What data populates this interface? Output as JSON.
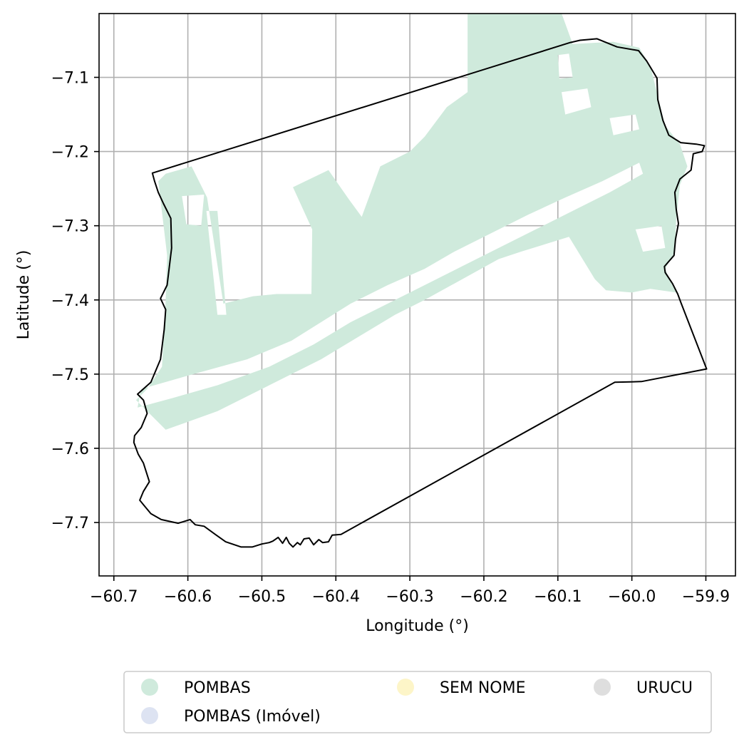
{
  "chart_data": {
    "type": "map",
    "xlabel": "Longitude (°)",
    "ylabel": "Latitude (°)",
    "xlim": [
      -60.72,
      -59.86
    ],
    "ylim": [
      -7.772,
      -7.014
    ],
    "x_ticks": [
      {
        "value": -60.7,
        "label": "−60.7"
      },
      {
        "value": -60.6,
        "label": "−60.6"
      },
      {
        "value": -60.5,
        "label": "−60.5"
      },
      {
        "value": -60.4,
        "label": "−60.4"
      },
      {
        "value": -60.3,
        "label": "−60.3"
      },
      {
        "value": -60.2,
        "label": "−60.2"
      },
      {
        "value": -60.1,
        "label": "−60.1"
      },
      {
        "value": -60.0,
        "label": "−60.0"
      },
      {
        "value": -59.9,
        "label": "−59.9"
      }
    ],
    "y_ticks": [
      {
        "value": -7.1,
        "label": "−7.1"
      },
      {
        "value": -7.2,
        "label": "−7.2"
      },
      {
        "value": -7.3,
        "label": "−7.3"
      },
      {
        "value": -7.4,
        "label": "−7.4"
      },
      {
        "value": -7.5,
        "label": "−7.5"
      },
      {
        "value": -7.6,
        "label": "−7.6"
      },
      {
        "value": -7.7,
        "label": "−7.7"
      }
    ],
    "grid": true,
    "legend_position": "bottom",
    "legend": [
      {
        "label": "POMBAS",
        "color": "#cfeadc"
      },
      {
        "label": "POMBAS (Imóvel)",
        "color": "#dde3f2"
      },
      {
        "label": "SEM NOME",
        "color": "#fdf5c8"
      },
      {
        "label": "URUCU",
        "color": "#dedede"
      }
    ],
    "boundary": [
      [
        -60.648,
        -7.229
      ],
      [
        -60.083,
        -7.053
      ],
      [
        -60.07,
        -7.05
      ],
      [
        -60.047,
        -7.048
      ],
      [
        -60.02,
        -7.059
      ],
      [
        -59.991,
        -7.064
      ],
      [
        -59.98,
        -7.078
      ],
      [
        -59.966,
        -7.101
      ],
      [
        -59.965,
        -7.13
      ],
      [
        -59.958,
        -7.158
      ],
      [
        -59.95,
        -7.178
      ],
      [
        -59.934,
        -7.188
      ],
      [
        -59.913,
        -7.19
      ],
      [
        -59.902,
        -7.192
      ],
      [
        -59.905,
        -7.2
      ],
      [
        -59.917,
        -7.203
      ],
      [
        -59.92,
        -7.225
      ],
      [
        -59.935,
        -7.237
      ],
      [
        -59.942,
        -7.255
      ],
      [
        -59.94,
        -7.278
      ],
      [
        -59.937,
        -7.297
      ],
      [
        -59.941,
        -7.318
      ],
      [
        -59.943,
        -7.34
      ],
      [
        -59.956,
        -7.355
      ],
      [
        -59.955,
        -7.363
      ],
      [
        -59.945,
        -7.378
      ],
      [
        -59.938,
        -7.392
      ],
      [
        -59.934,
        -7.403
      ],
      [
        -59.899,
        -7.493
      ],
      [
        -59.987,
        -7.51
      ],
      [
        -60.023,
        -7.511
      ],
      [
        -60.393,
        -7.716
      ],
      [
        -60.405,
        -7.717
      ],
      [
        -60.41,
        -7.726
      ],
      [
        -60.418,
        -7.727
      ],
      [
        -60.423,
        -7.723
      ],
      [
        -60.43,
        -7.73
      ],
      [
        -60.436,
        -7.721
      ],
      [
        -60.443,
        -7.722
      ],
      [
        -60.448,
        -7.73
      ],
      [
        -60.452,
        -7.727
      ],
      [
        -60.458,
        -7.733
      ],
      [
        -60.463,
        -7.728
      ],
      [
        -60.467,
        -7.72
      ],
      [
        -60.472,
        -7.728
      ],
      [
        -60.478,
        -7.72
      ],
      [
        -60.485,
        -7.725
      ],
      [
        -60.49,
        -7.727
      ],
      [
        -60.5,
        -7.729
      ],
      [
        -60.513,
        -7.733
      ],
      [
        -60.528,
        -7.733
      ],
      [
        -60.549,
        -7.726
      ],
      [
        -60.563,
        -7.716
      ],
      [
        -60.578,
        -7.705
      ],
      [
        -60.59,
        -7.703
      ],
      [
        -60.597,
        -7.696
      ],
      [
        -60.613,
        -7.701
      ],
      [
        -60.636,
        -7.696
      ],
      [
        -60.65,
        -7.688
      ],
      [
        -60.66,
        -7.676
      ],
      [
        -60.665,
        -7.67
      ],
      [
        -60.66,
        -7.658
      ],
      [
        -60.652,
        -7.645
      ],
      [
        -60.66,
        -7.62
      ],
      [
        -60.667,
        -7.608
      ],
      [
        -60.673,
        -7.592
      ],
      [
        -60.672,
        -7.583
      ],
      [
        -60.663,
        -7.572
      ],
      [
        -60.655,
        -7.553
      ],
      [
        -60.66,
        -7.535
      ],
      [
        -60.668,
        -7.527
      ],
      [
        -60.65,
        -7.511
      ],
      [
        -60.637,
        -7.48
      ],
      [
        -60.632,
        -7.44
      ],
      [
        -60.63,
        -7.413
      ],
      [
        -60.637,
        -7.398
      ],
      [
        -60.628,
        -7.38
      ],
      [
        -60.622,
        -7.33
      ],
      [
        -60.623,
        -7.29
      ],
      [
        -60.633,
        -7.27
      ],
      [
        -60.64,
        -7.255
      ],
      [
        -60.645,
        -7.24
      ],
      [
        -60.648,
        -7.229
      ]
    ],
    "regions": [
      {
        "name": "POMBAS",
        "color": "#cfeadc",
        "polygons": [
          [
            [
              -60.63,
              -7.575
            ],
            [
              -60.67,
              -7.535
            ],
            [
              -60.655,
              -7.52
            ],
            [
              -60.635,
              -7.49
            ],
            [
              -60.63,
              -7.4
            ],
            [
              -60.628,
              -7.34
            ],
            [
              -60.64,
              -7.24
            ],
            [
              -60.63,
              -7.23
            ],
            [
              -60.595,
              -7.22
            ],
            [
              -60.574,
              -7.262
            ],
            [
              -60.552,
              -7.405
            ],
            [
              -60.512,
              -7.395
            ],
            [
              -60.48,
              -7.392
            ],
            [
              -60.433,
              -7.392
            ],
            [
              -60.432,
              -7.305
            ],
            [
              -60.458,
              -7.248
            ],
            [
              -60.41,
              -7.225
            ],
            [
              -60.382,
              -7.265
            ],
            [
              -60.365,
              -7.288
            ],
            [
              -60.34,
              -7.22
            ],
            [
              -60.3,
              -7.2
            ],
            [
              -60.28,
              -7.18
            ],
            [
              -60.25,
              -7.14
            ],
            [
              -60.222,
              -7.12
            ],
            [
              -60.222,
              -7.0
            ],
            [
              -60.1,
              -7.0
            ],
            [
              -60.08,
              -7.055
            ],
            [
              -60.025,
              -7.052
            ],
            [
              -59.99,
              -7.06
            ],
            [
              -59.975,
              -7.085
            ],
            [
              -59.965,
              -7.125
            ],
            [
              -59.955,
              -7.165
            ],
            [
              -59.935,
              -7.19
            ],
            [
              -59.925,
              -7.22
            ],
            [
              -59.935,
              -7.245
            ],
            [
              -59.94,
              -7.29
            ],
            [
              -59.942,
              -7.335
            ],
            [
              -59.955,
              -7.358
            ],
            [
              -59.948,
              -7.375
            ],
            [
              -59.94,
              -7.39
            ],
            [
              -59.975,
              -7.385
            ],
            [
              -60.0,
              -7.39
            ],
            [
              -60.035,
              -7.387
            ],
            [
              -60.05,
              -7.372
            ],
            [
              -60.085,
              -7.315
            ],
            [
              -60.15,
              -7.335
            ],
            [
              -60.18,
              -7.345
            ],
            [
              -60.28,
              -7.4
            ],
            [
              -60.32,
              -7.42
            ],
            [
              -60.42,
              -7.48
            ],
            [
              -60.5,
              -7.52
            ],
            [
              -60.56,
              -7.55
            ],
            [
              -60.63,
              -7.575
            ]
          ]
        ],
        "holes": [
          [
            [
              -60.608,
              -7.26
            ],
            [
              -60.578,
              -7.258
            ],
            [
              -60.582,
              -7.3
            ],
            [
              -60.602,
              -7.298
            ],
            [
              -60.608,
              -7.26
            ]
          ],
          [
            [
              -60.575,
              -7.28
            ],
            [
              -60.56,
              -7.42
            ],
            [
              -60.548,
              -7.42
            ],
            [
              -60.56,
              -7.28
            ],
            [
              -60.575,
              -7.28
            ]
          ],
          [
            [
              -60.663,
              -7.52
            ],
            [
              -60.6,
              -7.502
            ],
            [
              -60.52,
              -7.48
            ],
            [
              -60.46,
              -7.455
            ],
            [
              -60.42,
              -7.43
            ],
            [
              -60.38,
              -7.405
            ],
            [
              -60.33,
              -7.38
            ],
            [
              -60.28,
              -7.358
            ],
            [
              -60.24,
              -7.335
            ],
            [
              -60.19,
              -7.31
            ],
            [
              -60.14,
              -7.285
            ],
            [
              -60.09,
              -7.262
            ],
            [
              -60.04,
              -7.24
            ],
            [
              -59.99,
              -7.215
            ],
            [
              -59.985,
              -7.23
            ],
            [
              -60.03,
              -7.255
            ],
            [
              -60.08,
              -7.28
            ],
            [
              -60.13,
              -7.305
            ],
            [
              -60.18,
              -7.33
            ],
            [
              -60.23,
              -7.355
            ],
            [
              -60.28,
              -7.38
            ],
            [
              -60.33,
              -7.405
            ],
            [
              -60.38,
              -7.43
            ],
            [
              -60.43,
              -7.46
            ],
            [
              -60.49,
              -7.49
            ],
            [
              -60.56,
              -7.515
            ],
            [
              -60.62,
              -7.532
            ],
            [
              -60.668,
              -7.545
            ],
            [
              -60.663,
              -7.52
            ]
          ],
          [
            [
              -60.095,
              -7.12
            ],
            [
              -60.06,
              -7.115
            ],
            [
              -60.055,
              -7.14
            ],
            [
              -60.09,
              -7.15
            ],
            [
              -60.095,
              -7.12
            ]
          ],
          [
            [
              -60.03,
              -7.155
            ],
            [
              -59.995,
              -7.15
            ],
            [
              -59.99,
              -7.17
            ],
            [
              -60.025,
              -7.178
            ],
            [
              -60.03,
              -7.155
            ]
          ],
          [
            [
              -59.995,
              -7.305
            ],
            [
              -59.96,
              -7.3
            ],
            [
              -59.955,
              -7.33
            ],
            [
              -59.985,
              -7.335
            ],
            [
              -59.995,
              -7.305
            ]
          ],
          [
            [
              -60.1,
              -7.07
            ],
            [
              -60.085,
              -7.068
            ],
            [
              -60.08,
              -7.1
            ],
            [
              -60.098,
              -7.102
            ],
            [
              -60.1,
              -7.07
            ]
          ]
        ]
      }
    ]
  }
}
